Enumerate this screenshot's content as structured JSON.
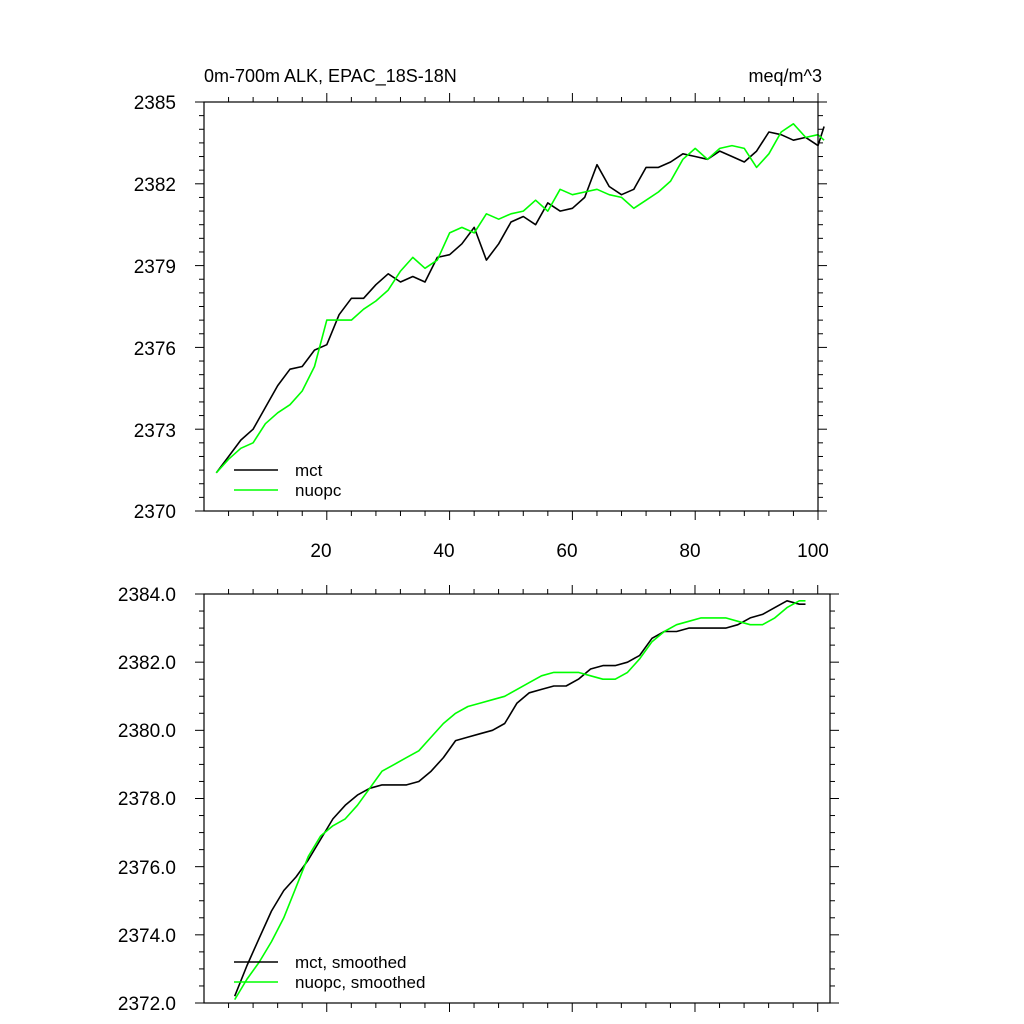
{
  "chart_data": [
    {
      "type": "line",
      "title": "0m-700m ALK, EPAC_18S-18N",
      "units": "meq/m^3",
      "xlim": [
        1,
        101
      ],
      "ylim": [
        2370,
        2385
      ],
      "xticks": [
        20,
        40,
        60,
        80,
        100
      ],
      "xtick_labels": [
        "20",
        "40",
        "60",
        "80",
        "100"
      ],
      "yticks": [
        2370,
        2373,
        2376,
        2379,
        2382,
        2385
      ],
      "ytick_labels": [
        "2370",
        "2373",
        "2376",
        "2379",
        "2382",
        "2385"
      ],
      "series": [
        {
          "name": "mct",
          "color": "#000000",
          "x": [
            2,
            4,
            6,
            8,
            10,
            12,
            14,
            16,
            18,
            20,
            22,
            24,
            26,
            28,
            30,
            32,
            34,
            36,
            38,
            40,
            42,
            44,
            46,
            48,
            50,
            52,
            54,
            56,
            58,
            60,
            62,
            64,
            66,
            68,
            70,
            72,
            74,
            76,
            78,
            80,
            82,
            84,
            86,
            88,
            90,
            92,
            94,
            96,
            98,
            100,
            101
          ],
          "values": [
            2371.4,
            2372.0,
            2372.6,
            2373.0,
            2373.8,
            2374.6,
            2375.2,
            2375.3,
            2375.9,
            2376.1,
            2377.2,
            2377.8,
            2377.8,
            2378.3,
            2378.7,
            2378.4,
            2378.6,
            2378.4,
            2379.3,
            2379.4,
            2379.8,
            2380.4,
            2379.2,
            2379.8,
            2380.6,
            2380.8,
            2380.5,
            2381.3,
            2381.0,
            2381.1,
            2381.5,
            2382.7,
            2381.9,
            2381.6,
            2381.8,
            2382.6,
            2382.6,
            2382.8,
            2383.1,
            2383.0,
            2382.9,
            2383.2,
            2383.0,
            2382.8,
            2383.2,
            2383.9,
            2383.8,
            2383.6,
            2383.7,
            2383.4,
            2384.1
          ]
        },
        {
          "name": "nuopc",
          "color": "#00ff00",
          "x": [
            2,
            4,
            6,
            8,
            10,
            12,
            14,
            16,
            18,
            20,
            22,
            24,
            26,
            28,
            30,
            32,
            34,
            36,
            38,
            40,
            42,
            44,
            46,
            48,
            50,
            52,
            54,
            56,
            58,
            60,
            62,
            64,
            66,
            68,
            70,
            72,
            74,
            76,
            78,
            80,
            82,
            84,
            86,
            88,
            90,
            92,
            94,
            96,
            98,
            100,
            101
          ],
          "values": [
            2371.4,
            2371.9,
            2372.3,
            2372.5,
            2373.2,
            2373.6,
            2373.9,
            2374.4,
            2375.3,
            2377.0,
            2377.0,
            2377.0,
            2377.4,
            2377.7,
            2378.1,
            2378.8,
            2379.3,
            2378.9,
            2379.2,
            2380.2,
            2380.4,
            2380.2,
            2380.9,
            2380.7,
            2380.9,
            2381.0,
            2381.4,
            2381.0,
            2381.8,
            2381.6,
            2381.7,
            2381.8,
            2381.6,
            2381.5,
            2381.1,
            2381.4,
            2381.7,
            2382.1,
            2382.9,
            2383.3,
            2382.9,
            2383.3,
            2383.4,
            2383.3,
            2382.6,
            2383.1,
            2383.9,
            2384.2,
            2383.7,
            2383.8,
            2383.6
          ]
        }
      ],
      "legend": {
        "placement": "lower-left"
      }
    },
    {
      "type": "line",
      "title": "",
      "xlim": [
        1,
        101
      ],
      "ylim": [
        2372.0,
        2384.0
      ],
      "xticks": [
        20,
        40,
        60,
        80,
        100
      ],
      "yticks": [
        2372.0,
        2374.0,
        2376.0,
        2378.0,
        2380.0,
        2382.0,
        2384.0
      ],
      "ytick_labels": [
        "2372.0",
        "2374.0",
        "2376.0",
        "2378.0",
        "2380.0",
        "2382.0",
        "2384.0"
      ],
      "series": [
        {
          "name": "mct, smoothed",
          "color": "#000000",
          "x": [
            5,
            7,
            9,
            11,
            13,
            15,
            17,
            19,
            21,
            23,
            25,
            27,
            29,
            31,
            33,
            35,
            37,
            39,
            41,
            43,
            45,
            47,
            49,
            51,
            53,
            55,
            57,
            59,
            61,
            63,
            65,
            67,
            69,
            71,
            73,
            75,
            77,
            79,
            81,
            83,
            85,
            87,
            89,
            91,
            93,
            95,
            97,
            98
          ],
          "values": [
            2372.2,
            2373.1,
            2373.9,
            2374.7,
            2375.3,
            2375.7,
            2376.2,
            2376.8,
            2377.4,
            2377.8,
            2378.1,
            2378.3,
            2378.4,
            2378.4,
            2378.4,
            2378.5,
            2378.8,
            2379.2,
            2379.7,
            2379.8,
            2379.9,
            2380.0,
            2380.2,
            2380.8,
            2381.1,
            2381.2,
            2381.3,
            2381.3,
            2381.5,
            2381.8,
            2381.9,
            2381.9,
            2382.0,
            2382.2,
            2382.7,
            2382.9,
            2382.9,
            2383.0,
            2383.0,
            2383.0,
            2383.0,
            2383.1,
            2383.3,
            2383.4,
            2383.6,
            2383.8,
            2383.7,
            2383.7
          ]
        },
        {
          "name": "nuopc, smoothed",
          "color": "#00ff00",
          "x": [
            5,
            7,
            9,
            11,
            13,
            15,
            17,
            19,
            21,
            23,
            25,
            27,
            29,
            31,
            33,
            35,
            37,
            39,
            41,
            43,
            45,
            47,
            49,
            51,
            53,
            55,
            57,
            59,
            61,
            63,
            65,
            67,
            69,
            71,
            73,
            75,
            77,
            79,
            81,
            83,
            85,
            87,
            89,
            91,
            93,
            95,
            97,
            98
          ],
          "values": [
            2372.1,
            2372.7,
            2373.2,
            2373.8,
            2374.5,
            2375.4,
            2376.3,
            2376.9,
            2377.2,
            2377.4,
            2377.8,
            2378.3,
            2378.8,
            2379.0,
            2379.2,
            2379.4,
            2379.8,
            2380.2,
            2380.5,
            2380.7,
            2380.8,
            2380.9,
            2381.0,
            2381.2,
            2381.4,
            2381.6,
            2381.7,
            2381.7,
            2381.7,
            2381.6,
            2381.5,
            2381.5,
            2381.7,
            2382.1,
            2382.6,
            2382.9,
            2383.1,
            2383.2,
            2383.3,
            2383.3,
            2383.3,
            2383.2,
            2383.1,
            2383.1,
            2383.3,
            2383.6,
            2383.8,
            2383.8
          ]
        }
      ],
      "legend": {
        "placement": "lower-left"
      }
    }
  ]
}
